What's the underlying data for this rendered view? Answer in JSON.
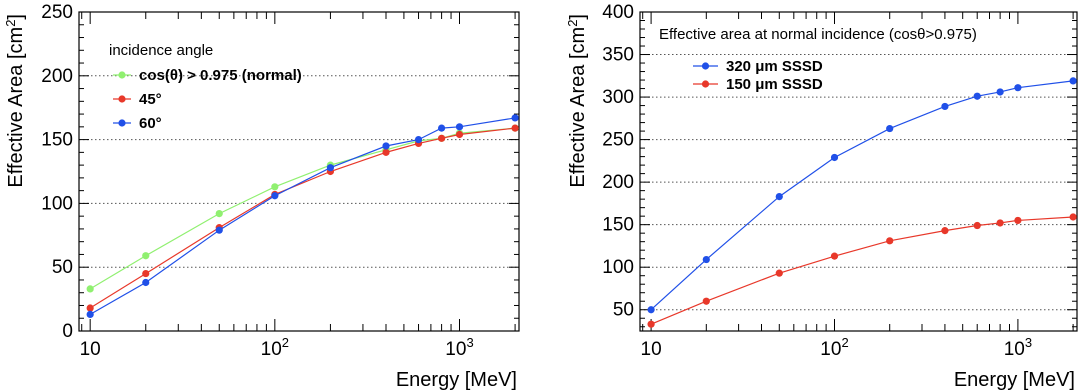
{
  "chart_data": [
    {
      "type": "line",
      "title": "",
      "xlabel": "Energy [MeV]",
      "ylabel": "Effective Area [cm2]",
      "xscale": "log",
      "xlim": [
        8.7,
        2100
      ],
      "ylim": [
        0,
        250
      ],
      "yticks": [
        0,
        50,
        100,
        150,
        200,
        250
      ],
      "xticks": [
        10,
        100,
        1000
      ],
      "xtick_labels": [
        "10",
        "10²",
        "10³"
      ],
      "grid": "horizontal dotted",
      "legend_title": "incidence angle",
      "legend_position": "top-left",
      "series": [
        {
          "name": "cos(θ) > 0.975 (normal)",
          "color": "#90f070",
          "x": [
            10,
            20,
            50,
            100,
            200,
            400,
            600,
            800,
            1000,
            2000
          ],
          "y": [
            33,
            59,
            92,
            113,
            130,
            142,
            149,
            151,
            155,
            159
          ]
        },
        {
          "name": "45°",
          "color": "#e8382a",
          "x": [
            10,
            20,
            50,
            100,
            200,
            400,
            600,
            800,
            1000,
            2000
          ],
          "y": [
            18,
            45,
            81,
            107,
            125,
            140,
            147,
            151,
            154,
            159
          ]
        },
        {
          "name": "60°",
          "color": "#2050e8",
          "x": [
            10,
            20,
            50,
            100,
            200,
            400,
            600,
            800,
            1000,
            2000
          ],
          "y": [
            13,
            38,
            79,
            106,
            128,
            145,
            150,
            159,
            160,
            167
          ]
        }
      ]
    },
    {
      "type": "line",
      "title": "",
      "xlabel": "Energy [MeV]",
      "ylabel": "Effective Area [cm2]",
      "xscale": "log",
      "xlim": [
        8.7,
        2100
      ],
      "ylim": [
        25,
        400
      ],
      "yticks": [
        50,
        100,
        150,
        200,
        250,
        300,
        350,
        400
      ],
      "xticks": [
        10,
        100,
        1000
      ],
      "xtick_labels": [
        "10",
        "10²",
        "10³"
      ],
      "grid": "horizontal dotted",
      "legend_title": "Effective area at normal incidence (cosθ>0.975)",
      "legend_position": "top-left",
      "series": [
        {
          "name": "320  μm SSSD",
          "color": "#2050e8",
          "x": [
            10,
            20,
            50,
            100,
            200,
            400,
            600,
            800,
            1000,
            2000
          ],
          "y": [
            50,
            109,
            183,
            229,
            263,
            289,
            301,
            306,
            311,
            319
          ]
        },
        {
          "name": "150  μm SSSD",
          "color": "#e8382a",
          "x": [
            10,
            20,
            50,
            100,
            200,
            400,
            600,
            800,
            1000,
            2000
          ],
          "y": [
            33,
            60,
            93,
            113,
            131,
            143,
            149,
            152,
            155,
            159
          ]
        }
      ]
    }
  ]
}
